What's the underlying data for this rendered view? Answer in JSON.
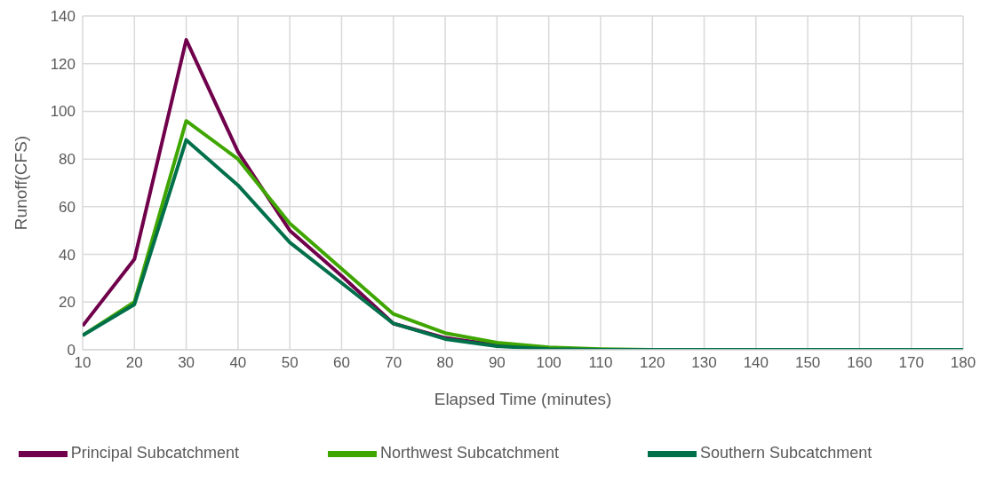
{
  "chart_data": {
    "type": "line",
    "xlabel": "Elapsed Time (minutes)",
    "ylabel": "Runoff(CFS)",
    "x": [
      10,
      20,
      30,
      40,
      50,
      60,
      70,
      80,
      90,
      100,
      110,
      120,
      130,
      140,
      150,
      160,
      170,
      180
    ],
    "xlim": [
      10,
      180
    ],
    "xticks": [
      10,
      20,
      30,
      40,
      50,
      60,
      70,
      80,
      90,
      100,
      110,
      120,
      130,
      140,
      150,
      160,
      170,
      180
    ],
    "ylim": [
      0,
      140
    ],
    "yticks": [
      0,
      20,
      40,
      60,
      80,
      100,
      120,
      140
    ],
    "grid": true,
    "legend": "bottom",
    "marker": "none",
    "line_style": "solid",
    "series": [
      {
        "name": "Principal Subcatchment",
        "color": "#70004b",
        "values": [
          10,
          38,
          130,
          83,
          50,
          31,
          11,
          5,
          2,
          0.5,
          null,
          null,
          null,
          null,
          null,
          null,
          null,
          null
        ]
      },
      {
        "name": "Northwest Subcatchment",
        "color": "#3fa600",
        "values": [
          6,
          20,
          96,
          80,
          53,
          34,
          15,
          7,
          3,
          1,
          0.3,
          0,
          0,
          null,
          null,
          null,
          null,
          null
        ]
      },
      {
        "name": "Southern Subcatchment",
        "color": "#00704b",
        "values": [
          6,
          19,
          88,
          69,
          45,
          28,
          11,
          4.5,
          1.5,
          0.3,
          0,
          0,
          0,
          0,
          0,
          0,
          0,
          0
        ]
      }
    ]
  }
}
